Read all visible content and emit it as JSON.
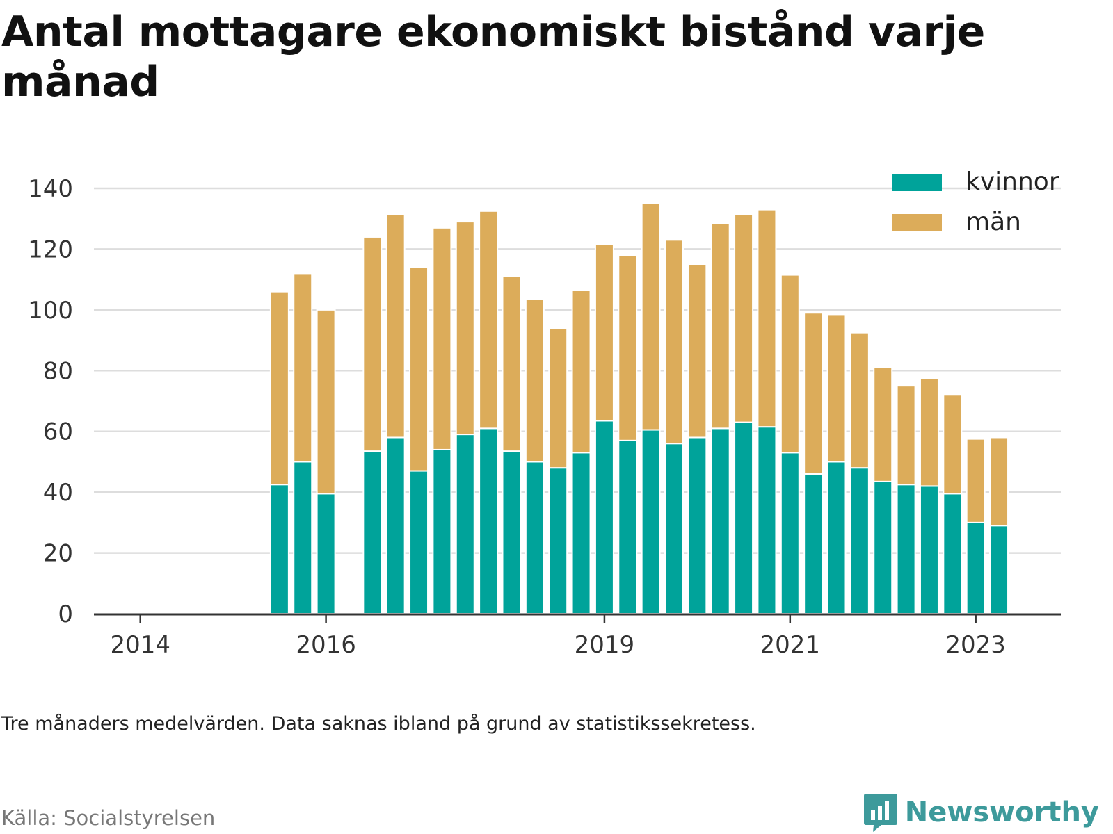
{
  "title": "Antal mottagare ekonomiskt bistånd varje månad",
  "note": "Tre månaders medelvärden. Data saknas ibland på grund av statistikssekretess.",
  "source": "Källa: Socialstyrelsen",
  "brand": "Newsworthy",
  "colors": {
    "kvinnor": "#00a39a",
    "man": "#dcac5a",
    "grid": "#dddddd",
    "axis": "#333333",
    "brand": "#3d9a9b"
  },
  "chart_data": {
    "type": "bar",
    "stacked": true,
    "legend_position": "top-right",
    "grid": true,
    "ylim": [
      0,
      140
    ],
    "yticks": [
      0,
      20,
      40,
      60,
      80,
      100,
      120,
      140
    ],
    "xlim": [
      "2013-07",
      "2023-12"
    ],
    "xticks": [
      {
        "label": "2014",
        "date": "2014-01"
      },
      {
        "label": "2016",
        "date": "2016-01"
      },
      {
        "label": "2019",
        "date": "2019-01"
      },
      {
        "label": "2021",
        "date": "2021-01"
      },
      {
        "label": "2023",
        "date": "2023-01"
      }
    ],
    "x": [
      "2015-07",
      "2015-10",
      "2016-01",
      "2016-07",
      "2016-10",
      "2017-01",
      "2017-04",
      "2017-07",
      "2017-10",
      "2018-01",
      "2018-04",
      "2018-07",
      "2018-10",
      "2019-01",
      "2019-04",
      "2019-07",
      "2019-10",
      "2020-01",
      "2020-04",
      "2020-07",
      "2020-10",
      "2021-01",
      "2021-04",
      "2021-07",
      "2021-10",
      "2022-01",
      "2022-04",
      "2022-07",
      "2022-10",
      "2023-01",
      "2023-04"
    ],
    "series": [
      {
        "name": "kvinnor",
        "values": [
          42.5,
          50,
          39.5,
          53.5,
          58,
          47,
          54,
          59,
          61,
          53.5,
          50,
          48,
          53,
          63.5,
          57,
          60.5,
          56,
          58,
          61,
          63,
          61.5,
          53,
          46,
          50,
          48,
          43.5,
          42.5,
          42,
          39.5,
          30,
          29
        ]
      },
      {
        "name": "män",
        "values": [
          63.5,
          62,
          60.5,
          70.5,
          73.5,
          67,
          73,
          70,
          71.5,
          57.5,
          53.5,
          46,
          53.5,
          58,
          61,
          74.5,
          67,
          57,
          67.5,
          68.5,
          71.5,
          58.5,
          53,
          48.5,
          44.5,
          37.5,
          32.5,
          35.5,
          32.5,
          27.5,
          29
        ]
      }
    ]
  }
}
